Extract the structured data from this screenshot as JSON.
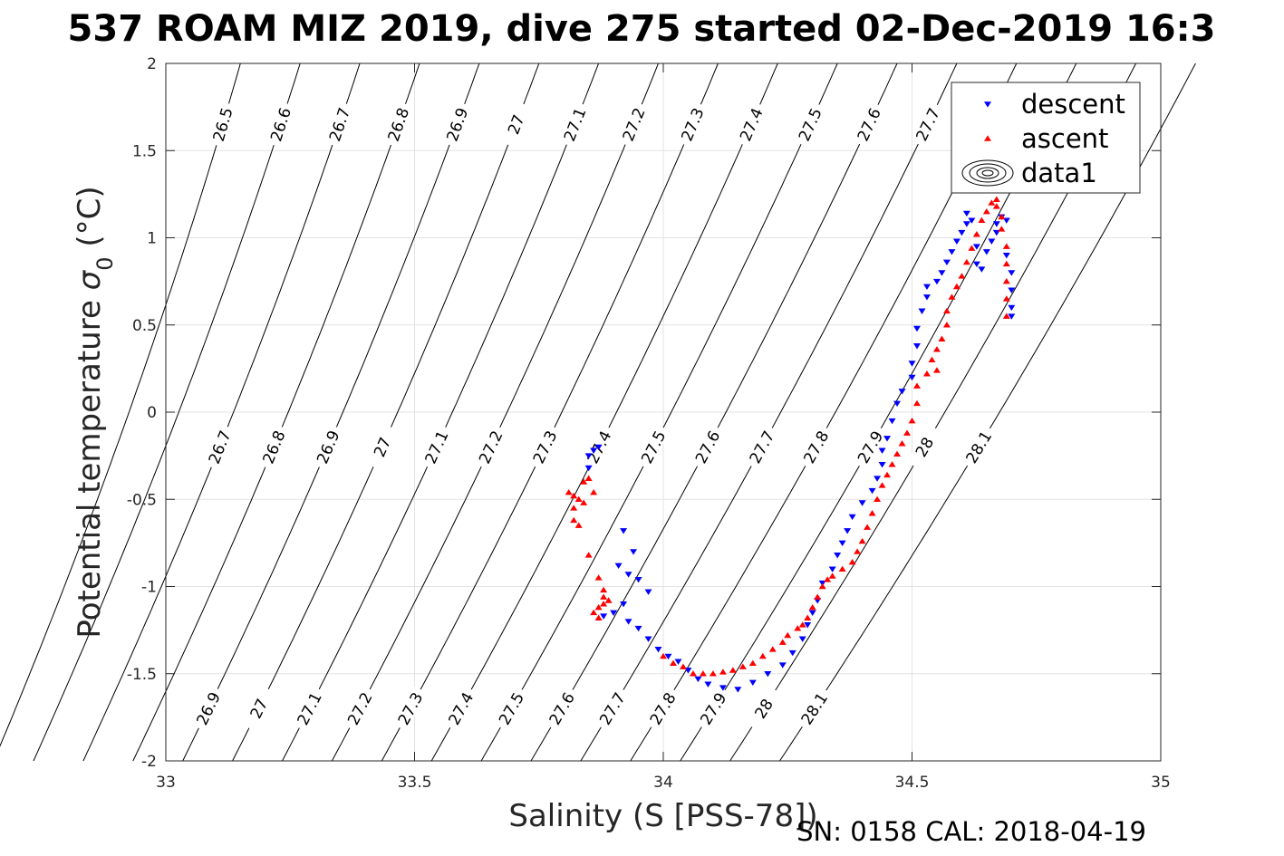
{
  "chart_data": {
    "type": "scatter",
    "title": "537 ROAM MIZ 2019, dive 275 started 02-Dec-2019 16:3",
    "xlabel": "Salinity (S [PSS-78])",
    "ylabel_main": "Potential temperature ",
    "ylabel_sigma": "σ",
    "ylabel_sub": "0",
    "ylabel_unit": " (°C)",
    "footer": "SN: 0158  CAL: 2018-04-19",
    "xlim": [
      33,
      35
    ],
    "ylim": [
      -2,
      2
    ],
    "x_ticks": [
      33,
      33.5,
      34,
      34.5,
      35
    ],
    "x_tick_labels": [
      "33",
      "33.5",
      "34",
      "34.5",
      "35"
    ],
    "y_ticks": [
      -2,
      -1.5,
      -1,
      -0.5,
      0,
      0.5,
      1,
      1.5,
      2
    ],
    "y_tick_labels": [
      "-2",
      "-1.5",
      "-1",
      "-0.5",
      "0",
      "0.5",
      "1",
      "1.5",
      "2"
    ],
    "grid": true,
    "legend": {
      "position": "top-right",
      "entries": [
        {
          "label": "descent",
          "marker": "triangle-down",
          "color": "#0000ff"
        },
        {
          "label": "ascent",
          "marker": "triangle-up",
          "color": "#ff0000"
        },
        {
          "label": "data1",
          "marker": "contour",
          "color": "#000000"
        }
      ]
    },
    "isopycnals": [
      {
        "sigma": 26.5,
        "label": "26.5",
        "s_top": 33.15,
        "slope": 0.1
      },
      {
        "sigma": 26.6,
        "label": "26.6",
        "s_top": 33.27,
        "slope": 0.11
      },
      {
        "sigma": 26.7,
        "label": "26.7",
        "s_top": 33.39,
        "slope": 0.115
      },
      {
        "sigma": 26.8,
        "label": "26.8",
        "s_top": 33.51,
        "slope": 0.12
      },
      {
        "sigma": 26.9,
        "label": "26.9",
        "s_top": 33.63,
        "slope": 0.125
      },
      {
        "sigma": 27.0,
        "label": "27",
        "s_top": 33.75,
        "slope": 0.13
      },
      {
        "sigma": 27.1,
        "label": "27.1",
        "s_top": 33.87,
        "slope": 0.135
      },
      {
        "sigma": 27.2,
        "label": "27.2",
        "s_top": 33.99,
        "slope": 0.14
      },
      {
        "sigma": 27.3,
        "label": "27.3",
        "s_top": 34.11,
        "slope": 0.145
      },
      {
        "sigma": 27.4,
        "label": "27.4",
        "s_top": 34.23,
        "slope": 0.15
      },
      {
        "sigma": 27.5,
        "label": "27.5",
        "s_top": 34.35,
        "slope": 0.155
      },
      {
        "sigma": 27.6,
        "label": "27.6",
        "s_top": 34.47,
        "slope": 0.16
      },
      {
        "sigma": 27.7,
        "label": "27.7",
        "s_top": 34.59,
        "slope": 0.165
      },
      {
        "sigma": 27.8,
        "label": "27.8",
        "s_top": 34.71,
        "slope": 0.17
      },
      {
        "sigma": 27.9,
        "label": "27.9",
        "s_top": 34.83,
        "slope": 0.175
      },
      {
        "sigma": 28.0,
        "label": "28",
        "s_top": 34.95,
        "slope": 0.18
      },
      {
        "sigma": 28.1,
        "label": "28.1",
        "s_top": 35.07,
        "slope": 0.185
      }
    ],
    "series": [
      {
        "name": "descent",
        "color": "#0000ff",
        "marker": "triangle-down",
        "points": [
          [
            33.87,
            -0.2
          ],
          [
            33.86,
            -0.22
          ],
          [
            33.85,
            -0.25
          ],
          [
            33.85,
            -0.32
          ],
          [
            33.92,
            -0.68
          ],
          [
            33.94,
            -0.8
          ],
          [
            33.91,
            -0.88
          ],
          [
            33.93,
            -0.93
          ],
          [
            33.95,
            -0.96
          ],
          [
            33.97,
            -1.03
          ],
          [
            33.92,
            -1.1
          ],
          [
            33.9,
            -1.15
          ],
          [
            33.88,
            -1.17
          ],
          [
            33.93,
            -1.2
          ],
          [
            33.95,
            -1.24
          ],
          [
            33.97,
            -1.3
          ],
          [
            33.99,
            -1.36
          ],
          [
            34.01,
            -1.4
          ],
          [
            34.03,
            -1.43
          ],
          [
            34.05,
            -1.48
          ],
          [
            34.07,
            -1.53
          ],
          [
            34.09,
            -1.56
          ],
          [
            34.12,
            -1.58
          ],
          [
            34.15,
            -1.59
          ],
          [
            34.18,
            -1.55
          ],
          [
            34.21,
            -1.5
          ],
          [
            34.24,
            -1.45
          ],
          [
            34.26,
            -1.38
          ],
          [
            34.28,
            -1.3
          ],
          [
            34.29,
            -1.22
          ],
          [
            34.3,
            -1.15
          ],
          [
            34.31,
            -1.08
          ],
          [
            34.32,
            -0.98
          ],
          [
            34.34,
            -0.9
          ],
          [
            34.35,
            -0.82
          ],
          [
            34.36,
            -0.75
          ],
          [
            34.37,
            -0.68
          ],
          [
            34.38,
            -0.6
          ],
          [
            34.4,
            -0.52
          ],
          [
            34.42,
            -0.45
          ],
          [
            34.43,
            -0.38
          ],
          [
            34.44,
            -0.3
          ],
          [
            34.44,
            -0.22
          ],
          [
            34.45,
            -0.15
          ],
          [
            34.46,
            -0.05
          ],
          [
            34.47,
            0.05
          ],
          [
            34.48,
            0.12
          ],
          [
            34.5,
            0.2
          ],
          [
            34.5,
            0.28
          ],
          [
            34.51,
            0.38
          ],
          [
            34.51,
            0.48
          ],
          [
            34.52,
            0.58
          ],
          [
            34.53,
            0.66
          ],
          [
            34.53,
            0.72
          ],
          [
            34.55,
            0.75
          ],
          [
            34.56,
            0.8
          ],
          [
            34.57,
            0.86
          ],
          [
            34.58,
            0.92
          ],
          [
            34.59,
            0.98
          ],
          [
            34.6,
            1.03
          ],
          [
            34.61,
            1.08
          ],
          [
            34.61,
            1.14
          ],
          [
            34.62,
            1.1
          ],
          [
            34.63,
            0.95
          ],
          [
            34.63,
            0.85
          ],
          [
            34.64,
            0.82
          ],
          [
            34.65,
            0.92
          ],
          [
            34.66,
            0.98
          ],
          [
            34.67,
            1.03
          ],
          [
            34.67,
            1.08
          ],
          [
            34.68,
            1.12
          ],
          [
            34.69,
            1.1
          ],
          [
            34.69,
            0.9
          ],
          [
            34.7,
            0.8
          ],
          [
            34.7,
            0.7
          ],
          [
            34.7,
            0.6
          ],
          [
            34.7,
            0.55
          ]
        ]
      },
      {
        "name": "ascent",
        "color": "#ff0000",
        "marker": "triangle-up",
        "points": [
          [
            33.81,
            -0.46
          ],
          [
            33.82,
            -0.48
          ],
          [
            33.83,
            -0.5
          ],
          [
            33.84,
            -0.52
          ],
          [
            33.82,
            -0.55
          ],
          [
            33.82,
            -0.62
          ],
          [
            33.83,
            -0.65
          ],
          [
            33.84,
            -0.4
          ],
          [
            33.85,
            -0.38
          ],
          [
            33.86,
            -0.46
          ],
          [
            33.85,
            -0.82
          ],
          [
            33.87,
            -0.95
          ],
          [
            33.88,
            -1.02
          ],
          [
            33.88,
            -1.06
          ],
          [
            33.89,
            -1.08
          ],
          [
            33.87,
            -1.12
          ],
          [
            33.86,
            -1.15
          ],
          [
            33.87,
            -1.18
          ],
          [
            33.88,
            -1.1
          ],
          [
            34.0,
            -1.4
          ],
          [
            34.02,
            -1.44
          ],
          [
            34.04,
            -1.46
          ],
          [
            34.06,
            -1.5
          ],
          [
            34.08,
            -1.5
          ],
          [
            34.1,
            -1.5
          ],
          [
            34.12,
            -1.49
          ],
          [
            34.14,
            -1.48
          ],
          [
            34.16,
            -1.46
          ],
          [
            34.18,
            -1.44
          ],
          [
            34.2,
            -1.4
          ],
          [
            34.22,
            -1.36
          ],
          [
            34.24,
            -1.32
          ],
          [
            34.25,
            -1.28
          ],
          [
            34.27,
            -1.24
          ],
          [
            34.28,
            -1.22
          ],
          [
            34.29,
            -1.18
          ],
          [
            34.3,
            -1.12
          ],
          [
            34.31,
            -1.06
          ],
          [
            34.32,
            -1.0
          ],
          [
            34.33,
            -0.96
          ],
          [
            34.34,
            -0.94
          ],
          [
            34.36,
            -0.9
          ],
          [
            34.38,
            -0.86
          ],
          [
            34.39,
            -0.8
          ],
          [
            34.4,
            -0.74
          ],
          [
            34.41,
            -0.66
          ],
          [
            34.42,
            -0.58
          ],
          [
            34.43,
            -0.5
          ],
          [
            34.44,
            -0.42
          ],
          [
            34.45,
            -0.36
          ],
          [
            34.46,
            -0.3
          ],
          [
            34.47,
            -0.24
          ],
          [
            34.48,
            -0.18
          ],
          [
            34.49,
            -0.12
          ],
          [
            34.5,
            -0.05
          ],
          [
            34.51,
            0.05
          ],
          [
            34.51,
            0.15
          ],
          [
            34.53,
            0.22
          ],
          [
            34.55,
            0.24
          ],
          [
            34.54,
            0.3
          ],
          [
            34.55,
            0.36
          ],
          [
            34.56,
            0.42
          ],
          [
            34.57,
            0.5
          ],
          [
            34.57,
            0.58
          ],
          [
            34.58,
            0.66
          ],
          [
            34.59,
            0.72
          ],
          [
            34.6,
            0.78
          ],
          [
            34.61,
            0.86
          ],
          [
            34.62,
            0.94
          ],
          [
            34.63,
            1.02
          ],
          [
            34.64,
            1.1
          ],
          [
            34.65,
            1.15
          ],
          [
            34.66,
            1.2
          ],
          [
            34.67,
            1.22
          ],
          [
            34.67,
            1.18
          ],
          [
            34.68,
            1.12
          ],
          [
            34.68,
            1.05
          ],
          [
            34.69,
            0.95
          ],
          [
            34.69,
            0.85
          ],
          [
            34.69,
            0.75
          ],
          [
            34.69,
            0.65
          ],
          [
            34.69,
            0.55
          ]
        ]
      }
    ]
  }
}
